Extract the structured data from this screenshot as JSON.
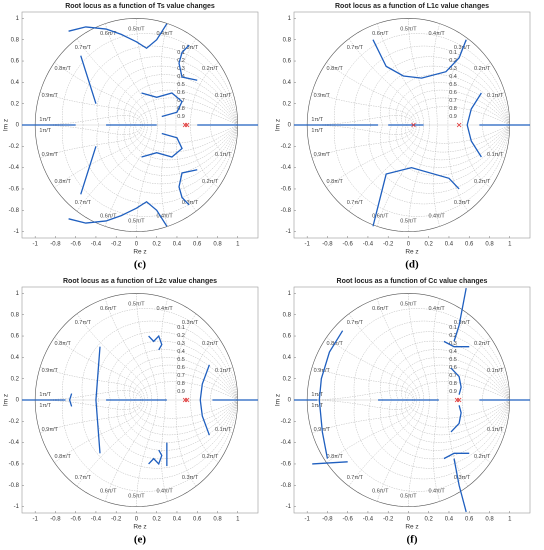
{
  "chart_data": [
    {
      "type": "root_locus",
      "title": "Root locus as a function of Ts value changes",
      "caption": "(c)",
      "xlabel": "Re z",
      "ylabel": "Im z",
      "xlim": [
        -1.13,
        1.2
      ],
      "ylim": [
        -1.06,
        1.06
      ],
      "xticks": [
        -1,
        -0.8,
        -0.6,
        -0.4,
        -0.2,
        0,
        0.2,
        0.4,
        0.6,
        0.8,
        1
      ],
      "yticks": [
        -1,
        -0.8,
        -0.6,
        -0.4,
        -0.2,
        0,
        0.2,
        0.4,
        0.6,
        0.8,
        1
      ],
      "wn_labels_upper": [
        "0.1π/T",
        "0.2π/T",
        "0.3π/T",
        "0.4π/T",
        "0.5π/T",
        "0.6π/T",
        "0.7π/T",
        "0.8π/T",
        "0.9π/T",
        "1π/T"
      ],
      "wn_labels_lower": [
        "0.1π/T",
        "0.2π/T",
        "0.3π/T",
        "0.4π/T",
        "0.5π/T",
        "0.6π/T",
        "0.7π/T",
        "0.8π/T",
        "0.9π/T",
        "1π/T"
      ],
      "zeta_labels": [
        "0.1",
        "0.2",
        "0.3",
        "0.4",
        "0.5",
        "0.6",
        "0.7",
        "0.8",
        "0.9"
      ],
      "series": [
        {
          "color": "#1f5fbf",
          "x": [
            -0.67,
            -0.5,
            -0.3,
            -0.15,
            0.0,
            0.1,
            0.2,
            0.3
          ],
          "y": [
            0.88,
            0.92,
            0.9,
            0.85,
            0.78,
            0.72,
            0.8,
            0.95
          ]
        },
        {
          "color": "#1f5fbf",
          "x": [
            -0.67,
            -0.5,
            -0.3,
            -0.15,
            0.0,
            0.1,
            0.2,
            0.3
          ],
          "y": [
            -0.88,
            -0.92,
            -0.9,
            -0.85,
            -0.78,
            -0.72,
            -0.8,
            -0.95
          ]
        },
        {
          "color": "#1f5fbf",
          "x": [
            -0.55,
            -0.5,
            -0.45,
            -0.4
          ],
          "y": [
            0.65,
            0.5,
            0.35,
            0.2
          ]
        },
        {
          "color": "#1f5fbf",
          "x": [
            -0.55,
            -0.5,
            -0.45,
            -0.4
          ],
          "y": [
            -0.65,
            -0.5,
            -0.35,
            -0.2
          ]
        },
        {
          "color": "#1f5fbf",
          "x": [
            0.52,
            0.45,
            0.42,
            0.45,
            0.6
          ],
          "y": [
            0.75,
            0.68,
            0.58,
            0.45,
            0.42
          ]
        },
        {
          "color": "#1f5fbf",
          "x": [
            0.52,
            0.45,
            0.42,
            0.45,
            0.6
          ],
          "y": [
            -0.75,
            -0.68,
            -0.58,
            -0.45,
            -0.42
          ]
        },
        {
          "color": "#1f5fbf",
          "x": [
            0.05,
            0.2,
            0.35,
            0.45,
            0.4,
            0.25
          ],
          "y": [
            0.3,
            0.26,
            0.3,
            0.22,
            0.12,
            0.08
          ]
        },
        {
          "color": "#1f5fbf",
          "x": [
            0.05,
            0.2,
            0.35,
            0.45,
            0.4,
            0.25
          ],
          "y": [
            -0.3,
            -0.26,
            -0.3,
            -0.22,
            -0.12,
            -0.08
          ]
        },
        {
          "color": "#1f5fbf",
          "x": [
            -1.13,
            -0.6
          ],
          "y": [
            0,
            0
          ]
        },
        {
          "color": "#1f5fbf",
          "x": [
            -0.3,
            0.2
          ],
          "y": [
            0,
            0
          ]
        },
        {
          "color": "#1f5fbf",
          "x": [
            0.6,
            1.2
          ],
          "y": [
            0,
            0
          ]
        }
      ],
      "poles": {
        "color": "#e03030",
        "x": [
          0.48,
          0.5
        ],
        "y": [
          0,
          0
        ]
      }
    },
    {
      "type": "root_locus",
      "title": "Root locus as a function of L1c value changes",
      "caption": "(d)",
      "xlabel": "Re z",
      "ylabel": "Im z",
      "xlim": [
        -1.13,
        1.2
      ],
      "ylim": [
        -1.06,
        1.06
      ],
      "xticks": [
        -1,
        -0.8,
        -0.6,
        -0.4,
        -0.2,
        0,
        0.2,
        0.4,
        0.6,
        0.8,
        1
      ],
      "yticks": [
        -1,
        -0.8,
        -0.6,
        -0.4,
        -0.2,
        0,
        0.2,
        0.4,
        0.6,
        0.8,
        1
      ],
      "wn_labels_upper": [
        "0.1π/T",
        "0.2π/T",
        "0.3π/T",
        "0.4π/T",
        "0.5π/T",
        "0.6π/T",
        "0.7π/T",
        "0.8π/T",
        "0.9π/T",
        "1π/T"
      ],
      "wn_labels_lower": [
        "0.1π/T",
        "0.2π/T",
        "0.3π/T",
        "0.4π/T",
        "0.5π/T",
        "0.6π/T",
        "0.7π/T",
        "0.8π/T",
        "0.9π/T",
        "1π/T"
      ],
      "zeta_labels": [
        "0.1",
        "0.2",
        "0.3",
        "0.4",
        "0.5",
        "0.6",
        "0.7",
        "0.8",
        "0.9"
      ],
      "series": [
        {
          "color": "#1f5fbf",
          "x": [
            -0.35,
            -0.22,
            -0.05,
            0.13,
            0.37,
            0.5,
            0.57
          ],
          "y": [
            0.8,
            0.55,
            0.46,
            0.44,
            0.5,
            0.63,
            0.8
          ]
        },
        {
          "color": "#1f5fbf",
          "x": [
            0.72,
            0.62,
            0.58,
            0.62,
            0.72
          ],
          "y": [
            0.3,
            0.15,
            0,
            -0.15,
            -0.3
          ]
        },
        {
          "color": "#1f5fbf",
          "x": [
            -0.35,
            -0.22,
            0.03,
            0.4,
            0.5
          ],
          "y": [
            -0.95,
            -0.46,
            -0.4,
            -0.5,
            -0.6
          ]
        },
        {
          "color": "#1f5fbf",
          "x": [
            -1.13,
            -0.3
          ],
          "y": [
            0,
            0
          ]
        },
        {
          "color": "#1f5fbf",
          "x": [
            -0.2,
            0.15
          ],
          "y": [
            0,
            0
          ]
        },
        {
          "color": "#1f5fbf",
          "x": [
            0.7,
            1.2
          ],
          "y": [
            0,
            0
          ]
        }
      ],
      "poles": {
        "color": "#e03030",
        "x": [
          0.05,
          0.5
        ],
        "y": [
          0,
          0
        ]
      }
    },
    {
      "type": "root_locus",
      "title": "Root locus as a function of L2c value changes",
      "caption": "(e)",
      "xlabel": "Re z",
      "ylabel": "Im z",
      "xlim": [
        -1.13,
        1.2
      ],
      "ylim": [
        -1.06,
        1.06
      ],
      "xticks": [
        -1,
        -0.8,
        -0.6,
        -0.4,
        -0.2,
        0,
        0.2,
        0.4,
        0.6,
        0.8,
        1
      ],
      "yticks": [
        -1,
        -0.8,
        -0.6,
        -0.4,
        -0.2,
        0,
        0.2,
        0.4,
        0.6,
        0.8,
        1
      ],
      "wn_labels_upper": [
        "0.1π/T",
        "0.2π/T",
        "0.3π/T",
        "0.4π/T",
        "0.5π/T",
        "0.6π/T",
        "0.7π/T",
        "0.8π/T",
        "0.9π/T",
        "1π/T"
      ],
      "wn_labels_lower": [
        "0.1π/T",
        "0.2π/T",
        "0.3π/T",
        "0.4π/T",
        "0.5π/T",
        "0.6π/T",
        "0.7π/T",
        "0.8π/T",
        "0.9π/T",
        "1π/T"
      ],
      "zeta_labels": [
        "0.1",
        "0.2",
        "0.3",
        "0.4",
        "0.5",
        "0.6",
        "0.7",
        "0.8",
        "0.9"
      ],
      "series": [
        {
          "color": "#1f5fbf",
          "x": [
            -0.36,
            -0.38,
            -0.4,
            -0.38,
            -0.36
          ],
          "y": [
            0.5,
            0.25,
            0,
            -0.25,
            -0.5
          ]
        },
        {
          "color": "#1f5fbf",
          "x": [
            -0.64,
            -0.66,
            -0.64
          ],
          "y": [
            0.06,
            0,
            -0.06
          ]
        },
        {
          "color": "#1f5fbf",
          "x": [
            0.12,
            0.17,
            0.22,
            0.25,
            0.22
          ],
          "y": [
            0.6,
            0.55,
            0.6,
            0.52,
            0.47
          ]
        },
        {
          "color": "#1f5fbf",
          "x": [
            0.12,
            0.17,
            0.22,
            0.25,
            0.22
          ],
          "y": [
            -0.6,
            -0.55,
            -0.6,
            -0.52,
            -0.47
          ]
        },
        {
          "color": "#1f5fbf",
          "x": [
            0.3,
            0.3
          ],
          "y": [
            -0.62,
            -0.4
          ]
        },
        {
          "color": "#1f5fbf",
          "x": [
            0.72,
            0.65,
            0.63,
            0.65,
            0.72
          ],
          "y": [
            0.33,
            0.15,
            0,
            -0.15,
            -0.33
          ]
        },
        {
          "color": "#1f5fbf",
          "x": [
            -1.13,
            -0.7
          ],
          "y": [
            0,
            0
          ]
        },
        {
          "color": "#1f5fbf",
          "x": [
            -0.3,
            0.3
          ],
          "y": [
            0,
            0
          ]
        },
        {
          "color": "#1f5fbf",
          "x": [
            0.75,
            1.2
          ],
          "y": [
            0,
            0
          ]
        }
      ],
      "poles": {
        "color": "#e03030",
        "x": [
          0.48,
          0.5
        ],
        "y": [
          0,
          0
        ]
      }
    },
    {
      "type": "root_locus",
      "title": "Root locus as a function of Cc value changes",
      "caption": "(f)",
      "xlabel": "Re z",
      "ylabel": "Im z",
      "xlim": [
        -1.13,
        1.2
      ],
      "ylim": [
        -1.06,
        1.06
      ],
      "xticks": [
        -1,
        -0.8,
        -0.6,
        -0.4,
        -0.2,
        0,
        0.2,
        0.4,
        0.6,
        0.8,
        1
      ],
      "yticks": [
        -1,
        -0.8,
        -0.6,
        -0.4,
        -0.2,
        0,
        0.2,
        0.4,
        0.6,
        0.8,
        1
      ],
      "wn_labels_upper": [
        "0.1π/T",
        "0.2π/T",
        "0.3π/T",
        "0.4π/T",
        "0.5π/T",
        "0.6π/T",
        "0.7π/T",
        "0.8π/T",
        "0.9π/T",
        "1π/T"
      ],
      "wn_labels_lower": [
        "0.1π/T",
        "0.2π/T",
        "0.3π/T",
        "0.4π/T",
        "0.5π/T",
        "0.6π/T",
        "0.7π/T",
        "0.8π/T",
        "0.9π/T",
        "1π/T"
      ],
      "zeta_labels": [
        "0.1",
        "0.2",
        "0.3",
        "0.4",
        "0.5",
        "0.6",
        "0.7",
        "0.8",
        "0.9"
      ],
      "series": [
        {
          "color": "#1f5fbf",
          "x": [
            -0.65,
            -0.78,
            -0.86,
            -0.88,
            -0.85,
            -0.8
          ],
          "y": [
            0.65,
            0.45,
            0.2,
            0,
            -0.3,
            -0.55
          ]
        },
        {
          "color": "#1f5fbf",
          "x": [
            -0.95,
            -0.6
          ],
          "y": [
            -0.6,
            -0.58
          ]
        },
        {
          "color": "#1f5fbf",
          "x": [
            0.57,
            0.5,
            0.45
          ],
          "y": [
            1.05,
            0.7,
            0.55
          ]
        },
        {
          "color": "#1f5fbf",
          "x": [
            0.45,
            0.5,
            0.57
          ],
          "y": [
            -0.55,
            -0.8,
            -1.05
          ]
        },
        {
          "color": "#1f5fbf",
          "x": [
            0.35,
            0.45,
            0.6
          ],
          "y": [
            0.55,
            0.5,
            0.5
          ]
        },
        {
          "color": "#1f5fbf",
          "x": [
            0.35,
            0.45,
            0.6
          ],
          "y": [
            -0.55,
            -0.5,
            -0.5
          ]
        },
        {
          "color": "#1f5fbf",
          "x": [
            0.42,
            0.5,
            0.52,
            0.5
          ],
          "y": [
            0.3,
            0.22,
            0.12,
            0.05
          ]
        },
        {
          "color": "#1f5fbf",
          "x": [
            0.42,
            0.5,
            0.52,
            0.5
          ],
          "y": [
            -0.3,
            -0.22,
            -0.12,
            -0.05
          ]
        },
        {
          "color": "#1f5fbf",
          "x": [
            -1.13,
            -0.9
          ],
          "y": [
            0,
            0
          ]
        },
        {
          "color": "#1f5fbf",
          "x": [
            -0.3,
            0.3
          ],
          "y": [
            0,
            0
          ]
        },
        {
          "color": "#1f5fbf",
          "x": [
            0.7,
            1.2
          ],
          "y": [
            0,
            0
          ]
        }
      ],
      "poles": {
        "color": "#e03030",
        "x": [
          0.48,
          0.5
        ],
        "y": [
          0,
          0
        ]
      }
    }
  ]
}
